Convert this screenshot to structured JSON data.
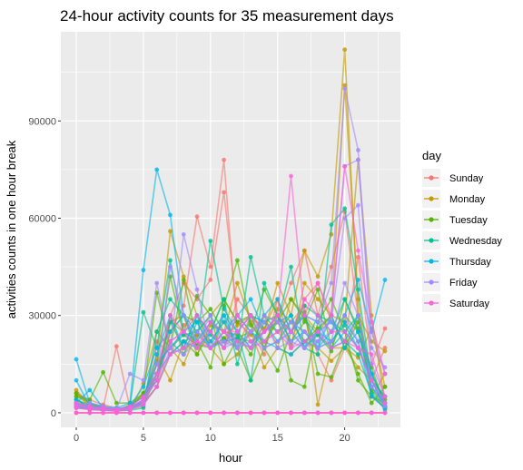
{
  "chart_data": {
    "type": "line",
    "title": "24-hour activity counts for 35 measurement days",
    "xlabel": "hour",
    "ylabel": "activities counts in one hour break",
    "xlim": [
      -1.15,
      24.15
    ],
    "ylim": [
      -4500,
      117500
    ],
    "x_ticks": [
      0,
      5,
      10,
      15,
      20
    ],
    "x_tick_labels": [
      "0",
      "5",
      "10",
      "15",
      "20"
    ],
    "y_ticks": [
      0,
      30000,
      60000,
      90000
    ],
    "y_tick_labels": [
      "0",
      "30000",
      "60000",
      "90000"
    ],
    "grid": true,
    "legend": {
      "title": "day",
      "position": "right"
    },
    "x": [
      0,
      1,
      2,
      3,
      4,
      5,
      6,
      7,
      8,
      9,
      10,
      11,
      12,
      13,
      14,
      15,
      16,
      17,
      18,
      19,
      20,
      21,
      22,
      23
    ],
    "series": [
      {
        "name": "Sunday",
        "color": "#F8766D",
        "days": [
          [
            3000,
            2000,
            1500,
            20500,
            1500,
            3000,
            8000,
            25000,
            33000,
            60500,
            45000,
            78000,
            25000,
            20000,
            30000,
            28000,
            21000,
            35000,
            40000,
            28000,
            22000,
            48000,
            15000,
            26000
          ],
          [
            6000,
            4000,
            2500,
            1500,
            1200,
            2000,
            12000,
            30000,
            40000,
            35000,
            41000,
            68000,
            30000,
            25000,
            18000,
            35000,
            25000,
            30000,
            18000,
            10000,
            20000,
            30000,
            5000,
            1500
          ],
          [
            0,
            0,
            0,
            0,
            0,
            0,
            0,
            0,
            0,
            0,
            0,
            0,
            0,
            0,
            0,
            0,
            0,
            0,
            0,
            0,
            0,
            0,
            0,
            0
          ],
          [
            2000,
            1500,
            1000,
            800,
            2000,
            3000,
            22000,
            18000,
            27000,
            30000,
            25000,
            20000,
            35000,
            30000,
            25000,
            28000,
            40000,
            50000,
            30000,
            45000,
            62000,
            30000,
            10000,
            20000
          ],
          [
            0,
            0,
            0,
            0,
            0,
            0,
            0,
            0,
            0,
            0,
            0,
            0,
            0,
            0,
            0,
            0,
            0,
            0,
            0,
            0,
            0,
            0,
            0,
            0
          ]
        ]
      },
      {
        "name": "Monday",
        "color": "#C49A00",
        "days": [
          [
            7000,
            2500,
            2000,
            1000,
            1500,
            4000,
            16000,
            56000,
            42000,
            30000,
            20000,
            23000,
            27000,
            30000,
            25000,
            40000,
            30000,
            50000,
            42000,
            55000,
            112000,
            30000,
            22000,
            19000
          ],
          [
            5000,
            3000,
            1500,
            1000,
            800,
            9000,
            25000,
            20000,
            15000,
            25000,
            30000,
            35000,
            28000,
            24000,
            30000,
            20000,
            35000,
            30000,
            25000,
            30000,
            101000,
            35000,
            5000,
            12000
          ],
          [
            4000,
            1500,
            1200,
            600,
            2500,
            5000,
            12000,
            28000,
            30000,
            18000,
            27000,
            25000,
            40000,
            28000,
            20000,
            32000,
            28000,
            33000,
            2500,
            20000,
            20000,
            17000,
            26000,
            8000
          ],
          [
            6000,
            2000,
            1500,
            1000,
            2000,
            3000,
            18000,
            10000,
            22000,
            24000,
            20000,
            15000,
            18000,
            25000,
            14000,
            20000,
            18000,
            22000,
            20000,
            16000,
            20000,
            14000,
            10000,
            5000
          ],
          [
            3000,
            1500,
            1000,
            800,
            1500,
            6000,
            10000,
            30000,
            18000,
            25000,
            22000,
            28000,
            20000,
            30000,
            26000,
            35000,
            20000,
            40000,
            35000,
            30000,
            28000,
            78000,
            30000,
            3000
          ]
        ]
      },
      {
        "name": "Tuesday",
        "color": "#53B400",
        "days": [
          [
            5000,
            4000,
            12500,
            3000,
            3000,
            6000,
            37000,
            20000,
            41000,
            22000,
            14000,
            33000,
            47000,
            27000,
            22000,
            28000,
            35000,
            29000,
            24000,
            19000,
            35000,
            26000,
            7000,
            1500
          ],
          [
            4000,
            2000,
            1500,
            1000,
            2000,
            6000,
            12000,
            28000,
            25000,
            36000,
            30000,
            15000,
            23000,
            25000,
            38000,
            30000,
            22000,
            28000,
            38000,
            20000,
            30000,
            25000,
            14000,
            2000
          ],
          [
            3000,
            1500,
            1000,
            800,
            1500,
            3000,
            8000,
            18000,
            22000,
            18000,
            25000,
            35000,
            28000,
            30000,
            20000,
            30000,
            10000,
            8000,
            28000,
            35000,
            25000,
            10000,
            5000,
            3000
          ],
          [
            2000,
            1000,
            800,
            600,
            1200,
            4000,
            15000,
            42000,
            24000,
            21000,
            20000,
            23000,
            20000,
            10000,
            20000,
            13000,
            25000,
            31000,
            12000,
            11000,
            22000,
            12000,
            3000,
            8000
          ],
          [
            6000,
            3000,
            1500,
            1000,
            2000,
            5000,
            10000,
            25000,
            30000,
            28000,
            32000,
            25000,
            24000,
            18000,
            28000,
            25000,
            28000,
            22000,
            26000,
            30000,
            20000,
            28000,
            12000,
            4000
          ]
        ]
      },
      {
        "name": "Wednesday",
        "color": "#00C094",
        "days": [
          [
            3000,
            2000,
            1500,
            1000,
            2000,
            31000,
            20000,
            47000,
            25000,
            22000,
            53000,
            32000,
            25000,
            10000,
            40000,
            30000,
            25000,
            20000,
            18000,
            58000,
            63000,
            38000,
            10000,
            5000
          ],
          [
            4000,
            2500,
            1500,
            800,
            1500,
            4000,
            12000,
            22000,
            18000,
            28000,
            20000,
            25000,
            20000,
            48000,
            30000,
            25000,
            30000,
            20000,
            30000,
            25000,
            35000,
            25000,
            8000,
            2000
          ],
          [
            2000,
            1000,
            1000,
            600,
            1200,
            2500,
            15000,
            20000,
            24000,
            25000,
            30000,
            22000,
            23000,
            22000,
            25000,
            28000,
            45000,
            20000,
            24000,
            20000,
            22000,
            18000,
            6000,
            1000
          ],
          [
            1500,
            1200,
            800,
            500,
            800,
            1500,
            25000,
            35000,
            30000,
            20000,
            25000,
            35000,
            15000,
            30000,
            28000,
            30000,
            25000,
            33000,
            30000,
            28000,
            25000,
            30000,
            12000,
            3000
          ],
          [
            2500,
            1500,
            1200,
            800,
            1500,
            3500,
            10000,
            28000,
            20000,
            30000,
            24000,
            20000,
            30000,
            25000,
            20000,
            22000,
            28000,
            25000,
            20000,
            22000,
            27000,
            20000,
            10000,
            2000
          ]
        ]
      },
      {
        "name": "Thursday",
        "color": "#00B6EB",
        "days": [
          [
            16500,
            3000,
            2000,
            1500,
            3000,
            44000,
            75000,
            61000,
            30000,
            25000,
            20000,
            30000,
            25000,
            20000,
            30000,
            35000,
            25000,
            30000,
            20000,
            25000,
            30000,
            41000,
            25000,
            41000
          ],
          [
            10000,
            2000,
            1500,
            1000,
            2000,
            8000,
            20000,
            25000,
            30000,
            22000,
            28000,
            25000,
            30000,
            35000,
            25000,
            28000,
            30000,
            20000,
            25000,
            28000,
            22000,
            30000,
            8000,
            3000
          ],
          [
            3000,
            7000,
            1500,
            1000,
            2000,
            5000,
            15000,
            20000,
            25000,
            28000,
            20000,
            22000,
            25000,
            30000,
            28000,
            22000,
            25000,
            30000,
            28000,
            20000,
            25000,
            20000,
            10000,
            2000
          ],
          [
            2000,
            1500,
            1000,
            800,
            1500,
            3000,
            12000,
            18000,
            22000,
            20000,
            25000,
            30000,
            20000,
            25000,
            22000,
            20000,
            18000,
            22000,
            25000,
            22000,
            28000,
            22000,
            5000,
            1500
          ],
          [
            4000,
            1500,
            1200,
            800,
            1200,
            4000,
            18000,
            30000,
            20000,
            30000,
            22000,
            28000,
            22000,
            20000,
            25000,
            30000,
            22000,
            25000,
            20000,
            30000,
            20000,
            25000,
            12000,
            3000
          ]
        ]
      },
      {
        "name": "Friday",
        "color": "#A58AFF",
        "days": [
          [
            2000,
            3000,
            2000,
            1000,
            12000,
            10000,
            40000,
            20000,
            55000,
            38000,
            20000,
            25000,
            30000,
            25000,
            30000,
            28000,
            25000,
            30000,
            28000,
            40000,
            100000,
            81000,
            20000,
            14000
          ],
          [
            3000,
            2000,
            1500,
            1200,
            1500,
            4000,
            10000,
            45000,
            30000,
            22000,
            30000,
            20000,
            25000,
            30000,
            22000,
            25000,
            28000,
            25000,
            22000,
            30000,
            76000,
            78000,
            25000,
            12000
          ],
          [
            1500,
            1000,
            800,
            600,
            1000,
            3000,
            12000,
            18000,
            20000,
            25000,
            20000,
            22000,
            20000,
            25000,
            28000,
            20000,
            22000,
            20000,
            25000,
            28000,
            60000,
            64000,
            15000,
            5000
          ],
          [
            2500,
            1500,
            1200,
            800,
            1500,
            3500,
            15000,
            22000,
            25000,
            20000,
            25000,
            20000,
            22000,
            20000,
            25000,
            28000,
            20000,
            25000,
            20000,
            22000,
            40000,
            30000,
            10000,
            3000
          ],
          [
            2000,
            1200,
            1000,
            700,
            1200,
            2500,
            8000,
            20000,
            18000,
            22000,
            20000,
            25000,
            20000,
            22000,
            20000,
            22000,
            25000,
            20000,
            22000,
            25000,
            30000,
            22000,
            8000,
            2000
          ]
        ]
      },
      {
        "name": "Saturday",
        "color": "#FB61D7",
        "days": [
          [
            2000,
            2000,
            1500,
            1000,
            2000,
            5000,
            12000,
            30000,
            25000,
            20000,
            28000,
            25000,
            25000,
            30000,
            25000,
            30000,
            73000,
            30000,
            40000,
            30000,
            76000,
            50000,
            28000,
            12000
          ],
          [
            3000,
            1500,
            1000,
            800,
            1500,
            4000,
            10000,
            22000,
            25000,
            30000,
            25000,
            20000,
            30000,
            22000,
            25000,
            30000,
            25000,
            35000,
            30000,
            25000,
            25000,
            20000,
            18000,
            5000
          ],
          [
            1500,
            1000,
            800,
            600,
            1000,
            2500,
            8000,
            18000,
            20000,
            22000,
            20000,
            25000,
            22000,
            20000,
            22000,
            25000,
            20000,
            22000,
            25000,
            20000,
            22000,
            20000,
            10000,
            3000
          ],
          [
            0,
            0,
            0,
            0,
            0,
            0,
            0,
            0,
            0,
            0,
            0,
            0,
            0,
            0,
            0,
            0,
            0,
            0,
            0,
            0,
            0,
            0,
            0,
            0
          ],
          [
            0,
            0,
            0,
            0,
            0,
            0,
            0,
            0,
            0,
            0,
            0,
            0,
            0,
            0,
            0,
            0,
            0,
            0,
            0,
            0,
            0,
            0,
            0,
            0
          ]
        ]
      }
    ]
  }
}
